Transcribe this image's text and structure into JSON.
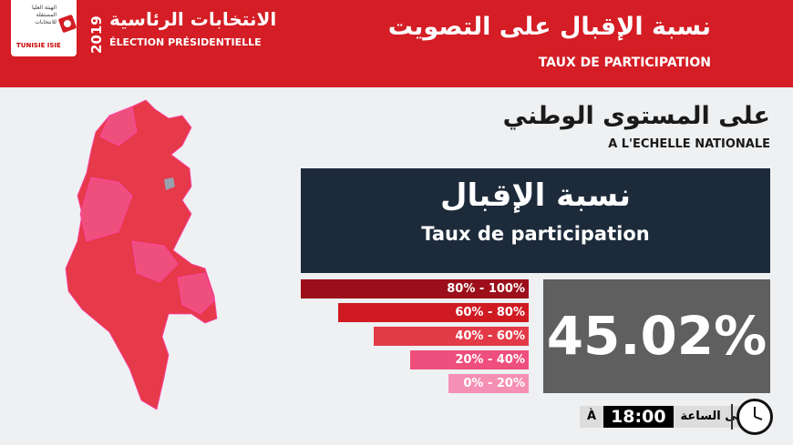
{
  "header": {
    "logo": {
      "text_ar": "الهيئة العليا المستقلة للانتخابات",
      "text_fr": "TUNISIE ISIE"
    },
    "year": "2019",
    "election_ar": "الانتخابات الرئاسية",
    "election_fr": "ÉLECTION PRÉSIDENTIELLE",
    "title_ar": "نسبة الإقبال على التصويت",
    "title_fr": "TAUX DE PARTICIPATION"
  },
  "scope": {
    "ar": "على المستوى الوطني",
    "fr": "A L'ECHELLE NATIONALE"
  },
  "panel": {
    "ar": "نسبة الإقبال",
    "fr": "Taux de participation"
  },
  "legend": [
    {
      "label": "80% - 100%",
      "color": "#9c0f1a"
    },
    {
      "label": "60% - 80%",
      "color": "#cf1a22"
    },
    {
      "label": "40% - 60%",
      "color": "#e33a48"
    },
    {
      "label": "20% - 40%",
      "color": "#ef4f7d"
    },
    {
      "label": "0% - 20%",
      "color": "#f58fb3"
    }
  ],
  "rate": "45.02%",
  "time": {
    "prefix_fr": "À",
    "value": "18:00",
    "prefix_ar": "حتى الساعة"
  },
  "icons": {
    "clock": "clock-icon",
    "flag": "tunisia-flag-icon"
  }
}
